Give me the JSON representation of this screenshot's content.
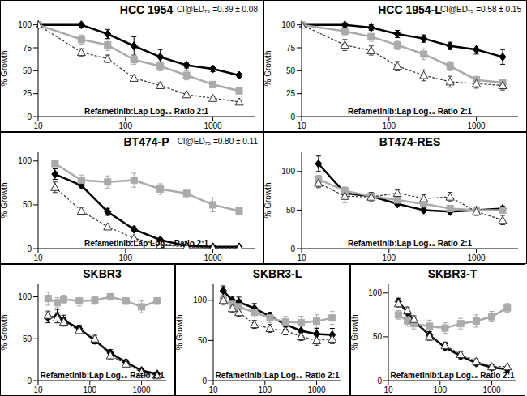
{
  "chart_data": [
    {
      "type": "line",
      "title": "HCC 1954",
      "annotation": "CI@ED₇₅ =0.39 ± 0.08",
      "x_label": "Refametinib:Lap Log₁₀ Ratio 2:1",
      "y_label": "% Growth",
      "log": "x",
      "xlim": [
        10,
        3000
      ],
      "xticks": [
        10,
        100,
        1000
      ],
      "ylim": [
        0,
        105
      ],
      "yticks": [
        0,
        25,
        50,
        75,
        100
      ],
      "x": [
        10,
        31.25,
        62.5,
        125,
        250,
        500,
        1000,
        2000
      ],
      "series": [
        {
          "color": "#000000",
          "marker": "diamond",
          "line_style": "solid",
          "values": [
            100,
            100,
            90,
            77,
            65,
            56,
            52,
            45
          ],
          "error": [
            2,
            2,
            5,
            10,
            8,
            3,
            3,
            2
          ]
        },
        {
          "color": "#aaaaaa",
          "marker": "square",
          "line_style": "solid",
          "values": [
            100,
            84,
            78,
            62,
            55,
            45,
            35,
            28
          ],
          "error": [
            2,
            5,
            6,
            5,
            5,
            5,
            3,
            3
          ]
        },
        {
          "color": "#333333",
          "marker": "triangle",
          "line_style": "dashed",
          "values": [
            100,
            70,
            63,
            42,
            34,
            24,
            20,
            16
          ],
          "error": [
            2,
            4,
            4,
            3,
            3,
            3,
            2,
            2
          ]
        }
      ]
    },
    {
      "type": "line",
      "title": "HCC 1954-L",
      "annotation": "CI@ED₇₅ =0.58 ± 0.15",
      "x_label": "Refametinib:Lap Log₁₀ Ratio 2:1",
      "y_label": "% Growth",
      "log": "x",
      "xlim": [
        10,
        3000
      ],
      "xticks": [
        10,
        100,
        1000
      ],
      "ylim": [
        0,
        105
      ],
      "yticks": [
        0,
        25,
        50,
        75,
        100
      ],
      "x": [
        10,
        31.25,
        62.5,
        125,
        250,
        500,
        1000,
        2000
      ],
      "series": [
        {
          "color": "#000000",
          "marker": "diamond",
          "line_style": "solid",
          "values": [
            100,
            100,
            97,
            90,
            85,
            77,
            73,
            65
          ],
          "error": [
            2,
            2,
            3,
            4,
            4,
            4,
            5,
            8
          ]
        },
        {
          "color": "#aaaaaa",
          "marker": "square",
          "line_style": "solid",
          "values": [
            100,
            93,
            87,
            78,
            68,
            55,
            40,
            37
          ],
          "error": [
            2,
            4,
            5,
            5,
            6,
            5,
            4,
            4
          ]
        },
        {
          "color": "#333333",
          "marker": "triangle",
          "line_style": "dashed",
          "values": [
            100,
            78,
            72,
            55,
            45,
            38,
            36,
            34
          ],
          "error": [
            2,
            6,
            5,
            5,
            6,
            6,
            5,
            5
          ]
        }
      ]
    },
    {
      "type": "line",
      "title": "BT474-P",
      "annotation": "CI@ED₇₅ =0.80 ± 0.11",
      "x_label": "Refametinib:Lap Log₁₀ Ratio 2:1",
      "y_label": "% Growth",
      "log": "x",
      "xlim": [
        10,
        3000
      ],
      "xticks": [
        10,
        100,
        1000
      ],
      "ylim": [
        0,
        110
      ],
      "yticks": [
        0,
        50,
        100
      ],
      "x": [
        15.6,
        31.25,
        62.5,
        125,
        250,
        500,
        1000,
        2000
      ],
      "series": [
        {
          "color": "#000000",
          "marker": "diamond",
          "line_style": "solid",
          "values": [
            85,
            72,
            42,
            22,
            10,
            3,
            2,
            2
          ],
          "error": [
            6,
            4,
            4,
            3,
            2,
            1,
            1,
            1
          ]
        },
        {
          "color": "#aaaaaa",
          "marker": "square",
          "line_style": "solid",
          "values": [
            97,
            78,
            76,
            78,
            68,
            63,
            50,
            43
          ],
          "error": [
            3,
            6,
            7,
            8,
            6,
            5,
            8,
            3
          ]
        },
        {
          "color": "#333333",
          "marker": "triangle",
          "line_style": "dashed",
          "values": [
            70,
            43,
            25,
            12,
            4,
            2,
            1,
            1
          ],
          "error": [
            6,
            4,
            3,
            2,
            1,
            1,
            1,
            1
          ]
        }
      ]
    },
    {
      "type": "line",
      "title": "BT474-RES",
      "x_label": "Refametinib:Lap Log₁₀ Ratio 2:1",
      "y_label": "% Growth",
      "log": "x",
      "xlim": [
        10,
        3000
      ],
      "xticks": [
        10,
        100,
        1000
      ],
      "ylim": [
        0,
        125
      ],
      "yticks": [
        0,
        50,
        100
      ],
      "x": [
        15.6,
        31.25,
        62.5,
        125,
        250,
        500,
        1000,
        2000
      ],
      "series": [
        {
          "color": "#000000",
          "marker": "diamond",
          "line_style": "solid",
          "values": [
            110,
            72,
            68,
            58,
            50,
            48,
            50,
            52
          ],
          "error": [
            10,
            6,
            4,
            4,
            3,
            3,
            3,
            3
          ]
        },
        {
          "color": "#aaaaaa",
          "marker": "square",
          "line_style": "solid",
          "values": [
            90,
            75,
            68,
            63,
            58,
            52,
            50,
            50
          ],
          "error": [
            5,
            5,
            4,
            4,
            4,
            4,
            4,
            4
          ]
        },
        {
          "color": "#333333",
          "marker": "triangle",
          "line_style": "dashed",
          "values": [
            85,
            68,
            67,
            72,
            65,
            67,
            48,
            37
          ],
          "error": [
            6,
            8,
            6,
            4,
            5,
            6,
            5,
            6
          ]
        }
      ]
    },
    {
      "type": "line",
      "title": "SKBR3",
      "x_label": "Refametinib:Lap Log₁₀ Ratio 2:1",
      "y_label": "% Growth",
      "log": "x",
      "xlim": [
        10,
        3000
      ],
      "xticks": [
        10,
        100,
        1000
      ],
      "ylim": [
        0,
        115
      ],
      "yticks": [
        0,
        50,
        100
      ],
      "x": [
        15.6,
        23.4,
        31.25,
        62.5,
        125,
        250,
        500,
        1000,
        2000
      ],
      "series": [
        {
          "color": "#000000",
          "marker": "diamond",
          "line_style": "solid",
          "values": [
            75,
            77,
            72,
            62,
            48,
            33,
            22,
            12,
            8
          ],
          "error": [
            6,
            8,
            6,
            4,
            4,
            4,
            3,
            2,
            2
          ]
        },
        {
          "color": "#aaaaaa",
          "marker": "square",
          "line_style": "solid",
          "values": [
            98,
            93,
            97,
            95,
            96,
            100,
            95,
            88,
            95
          ],
          "error": [
            8,
            6,
            5,
            6,
            5,
            4,
            4,
            7,
            4
          ]
        },
        {
          "color": "#333333",
          "marker": "triangle",
          "line_style": "dashed",
          "values": [
            78,
            75,
            70,
            60,
            50,
            30,
            20,
            10,
            6
          ],
          "error": [
            5,
            6,
            5,
            4,
            4,
            4,
            3,
            2,
            2
          ]
        }
      ]
    },
    {
      "type": "line",
      "title": "SKBR3-L",
      "x_label": "Refametinib:Lap Log₁₀ Ratio 2:1",
      "y_label": "% Growth",
      "log": "x",
      "xlim": [
        10,
        3000
      ],
      "xticks": [
        10,
        100,
        1000
      ],
      "ylim": [
        0,
        120
      ],
      "yticks": [
        0,
        50,
        100
      ],
      "x": [
        15.6,
        23.4,
        31.25,
        62.5,
        125,
        250,
        500,
        1000,
        2000
      ],
      "series": [
        {
          "color": "#000000",
          "marker": "diamond",
          "line_style": "solid",
          "values": [
            112,
            100,
            98,
            90,
            80,
            70,
            62,
            58,
            57
          ],
          "error": [
            6,
            5,
            6,
            6,
            5,
            6,
            6,
            7,
            8
          ]
        },
        {
          "color": "#aaaaaa",
          "marker": "square",
          "line_style": "solid",
          "values": [
            100,
            95,
            92,
            85,
            78,
            73,
            72,
            74,
            78
          ],
          "error": [
            6,
            5,
            6,
            6,
            6,
            7,
            8,
            8,
            8
          ]
        },
        {
          "color": "#333333",
          "marker": "triangle",
          "line_style": "dashed",
          "values": [
            100,
            90,
            85,
            70,
            65,
            62,
            55,
            50,
            52
          ],
          "error": [
            5,
            5,
            5,
            5,
            5,
            5,
            5,
            6,
            6
          ]
        }
      ]
    },
    {
      "type": "line",
      "title": "SKBR3-T",
      "x_label": "Refametinib:Lap Log₁₀ Ratio 2:1",
      "y_label": "% Growth",
      "log": "x",
      "xlim": [
        10,
        3000
      ],
      "xticks": [
        10,
        100,
        1000
      ],
      "ylim": [
        0,
        110
      ],
      "yticks": [
        0,
        50,
        100
      ],
      "x": [
        15.6,
        23.4,
        31.25,
        62.5,
        125,
        250,
        500,
        1000,
        2000
      ],
      "series": [
        {
          "color": "#000000",
          "marker": "diamond",
          "line_style": "solid",
          "values": [
            90,
            78,
            68,
            52,
            38,
            28,
            20,
            15,
            13
          ],
          "error": [
            4,
            4,
            4,
            4,
            4,
            3,
            3,
            3,
            3
          ]
        },
        {
          "color": "#aaaaaa",
          "marker": "square",
          "line_style": "solid",
          "values": [
            75,
            68,
            65,
            62,
            60,
            65,
            68,
            73,
            83
          ],
          "error": [
            5,
            6,
            6,
            7,
            6,
            6,
            7,
            6,
            5
          ]
        },
        {
          "color": "#333333",
          "marker": "triangle",
          "line_style": "dashed",
          "values": [
            88,
            80,
            70,
            50,
            40,
            30,
            22,
            16,
            16
          ],
          "error": [
            4,
            4,
            4,
            4,
            4,
            3,
            3,
            3,
            3
          ]
        }
      ]
    }
  ]
}
